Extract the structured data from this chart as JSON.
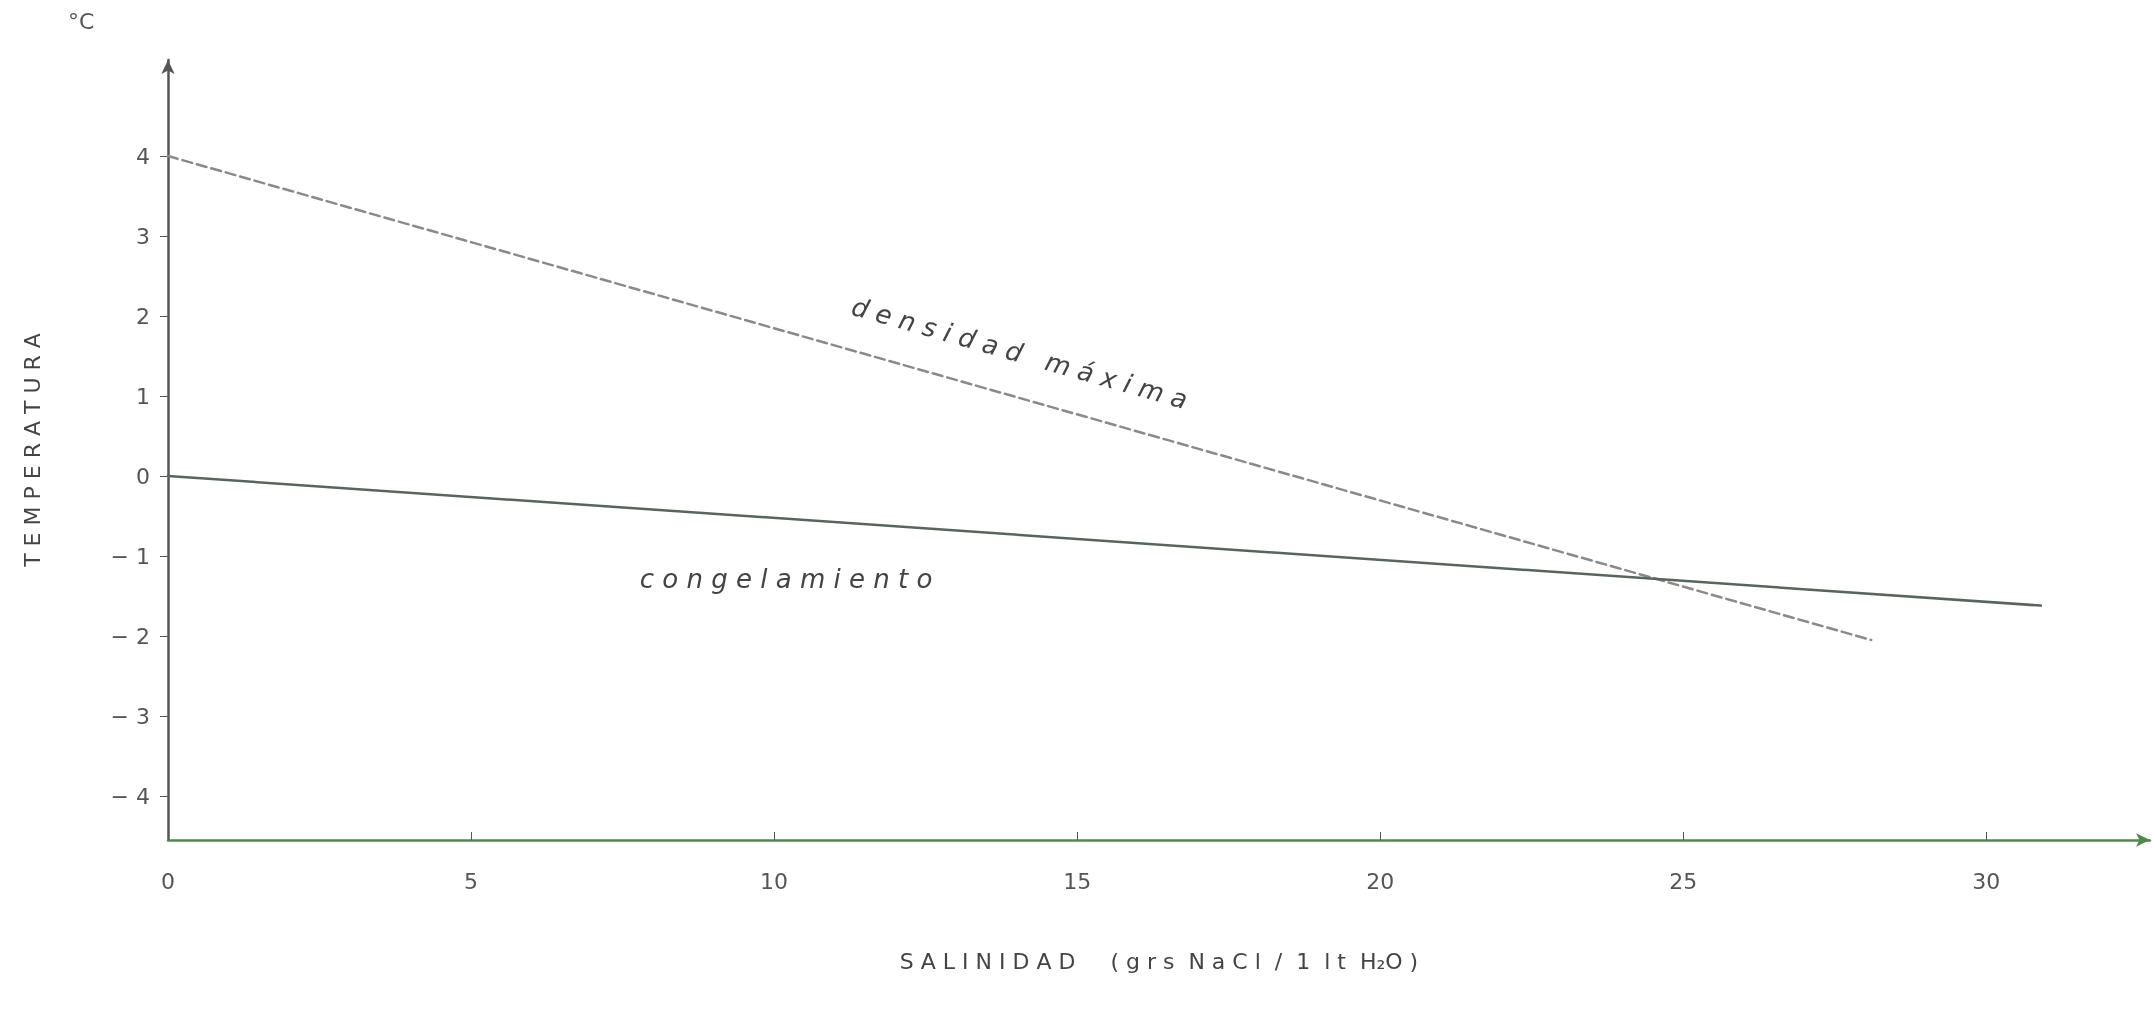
{
  "chart_data": {
    "type": "line",
    "xlabel": "S A L I N I D A D     ( g r s  N a C l  /  1  l t  H₂O )",
    "ylabel": "T E M P E R A T U R A",
    "annotations": [
      "°C"
    ],
    "xlim": [
      0,
      32.7
    ],
    "xticks": [
      0,
      5,
      10,
      15,
      20,
      25,
      30
    ],
    "ylim": [
      -4.55,
      5.2
    ],
    "yticks": [
      -4,
      -3,
      -2,
      -1,
      0,
      1,
      2,
      3,
      4
    ],
    "grid": false,
    "legend": false,
    "marker": "none",
    "series": [
      {
        "name": "d e n s i d a d   m á x i m a",
        "color": "#8a8a8a",
        "line_style": "dashed",
        "x": [
          0,
          28.1
        ],
        "values": [
          4,
          -2.05
        ]
      },
      {
        "name": "c o n g e l a m i e n t o",
        "color": "#55665a",
        "line_style": "solid",
        "x": [
          0,
          30.9
        ],
        "values": [
          0,
          -1.62
        ]
      }
    ]
  }
}
